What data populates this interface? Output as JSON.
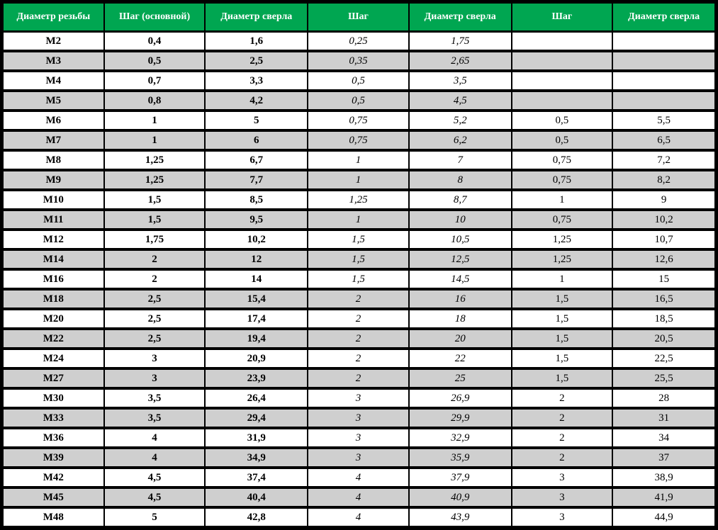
{
  "table": {
    "type": "table",
    "header_bg": "#00a651",
    "header_fg": "#ffffff",
    "row_even_bg": "#ffffff",
    "row_odd_bg": "#cfcfcf",
    "border_color": "#000000",
    "font_family": "Times New Roman",
    "header_fontsize_pt": 11,
    "cell_fontsize_pt": 11,
    "columns": [
      {
        "label": "Диаметр резьбы",
        "style": "bold",
        "width_pct": 14.2
      },
      {
        "label": "Шаг (основной)",
        "style": "bold",
        "width_pct": 14.2
      },
      {
        "label": "Диаметр сверла",
        "style": "bold",
        "width_pct": 14.4
      },
      {
        "label": "Шаг",
        "style": "italic",
        "width_pct": 14.2
      },
      {
        "label": "Диаметр сверла",
        "style": "italic",
        "width_pct": 14.4
      },
      {
        "label": "Шаг",
        "style": "normal",
        "width_pct": 14.2
      },
      {
        "label": "Диаметр сверла",
        "style": "normal",
        "width_pct": 14.4
      }
    ],
    "rows": [
      [
        "M2",
        "0,4",
        "1,6",
        "0,25",
        "1,75",
        "",
        ""
      ],
      [
        "M3",
        "0,5",
        "2,5",
        "0,35",
        "2,65",
        "",
        ""
      ],
      [
        "M4",
        "0,7",
        "3,3",
        "0,5",
        "3,5",
        "",
        ""
      ],
      [
        "M5",
        "0,8",
        "4,2",
        "0,5",
        "4,5",
        "",
        ""
      ],
      [
        "M6",
        "1",
        "5",
        "0,75",
        "5,2",
        "0,5",
        "5,5"
      ],
      [
        "M7",
        "1",
        "6",
        "0,75",
        "6,2",
        "0,5",
        "6,5"
      ],
      [
        "M8",
        "1,25",
        "6,7",
        "1",
        "7",
        "0,75",
        "7,2"
      ],
      [
        "M9",
        "1,25",
        "7,7",
        "1",
        "8",
        "0,75",
        "8,2"
      ],
      [
        "M10",
        "1,5",
        "8,5",
        "1,25",
        "8,7",
        "1",
        "9"
      ],
      [
        "M11",
        "1,5",
        "9,5",
        "1",
        "10",
        "0,75",
        "10,2"
      ],
      [
        "M12",
        "1,75",
        "10,2",
        "1,5",
        "10,5",
        "1,25",
        "10,7"
      ],
      [
        "M14",
        "2",
        "12",
        "1,5",
        "12,5",
        "1,25",
        "12,6"
      ],
      [
        "M16",
        "2",
        "14",
        "1,5",
        "14,5",
        "1",
        "15"
      ],
      [
        "M18",
        "2,5",
        "15,4",
        "2",
        "16",
        "1,5",
        "16,5"
      ],
      [
        "M20",
        "2,5",
        "17,4",
        "2",
        "18",
        "1,5",
        "18,5"
      ],
      [
        "M22",
        "2,5",
        "19,4",
        "2",
        "20",
        "1,5",
        "20,5"
      ],
      [
        "M24",
        "3",
        "20,9",
        "2",
        "22",
        "1,5",
        "22,5"
      ],
      [
        "M27",
        "3",
        "23,9",
        "2",
        "25",
        "1,5",
        "25,5"
      ],
      [
        "M30",
        "3,5",
        "26,4",
        "3",
        "26,9",
        "2",
        "28"
      ],
      [
        "M33",
        "3,5",
        "29,4",
        "3",
        "29,9",
        "2",
        "31"
      ],
      [
        "M36",
        "4",
        "31,9",
        "3",
        "32,9",
        "2",
        "34"
      ],
      [
        "M39",
        "4",
        "34,9",
        "3",
        "35,9",
        "2",
        "37"
      ],
      [
        "M42",
        "4,5",
        "37,4",
        "4",
        "37,9",
        "3",
        "38,9"
      ],
      [
        "M45",
        "4,5",
        "40,4",
        "4",
        "40,9",
        "3",
        "41,9"
      ],
      [
        "M48",
        "5",
        "42,8",
        "4",
        "43,9",
        "3",
        "44,9"
      ]
    ]
  }
}
